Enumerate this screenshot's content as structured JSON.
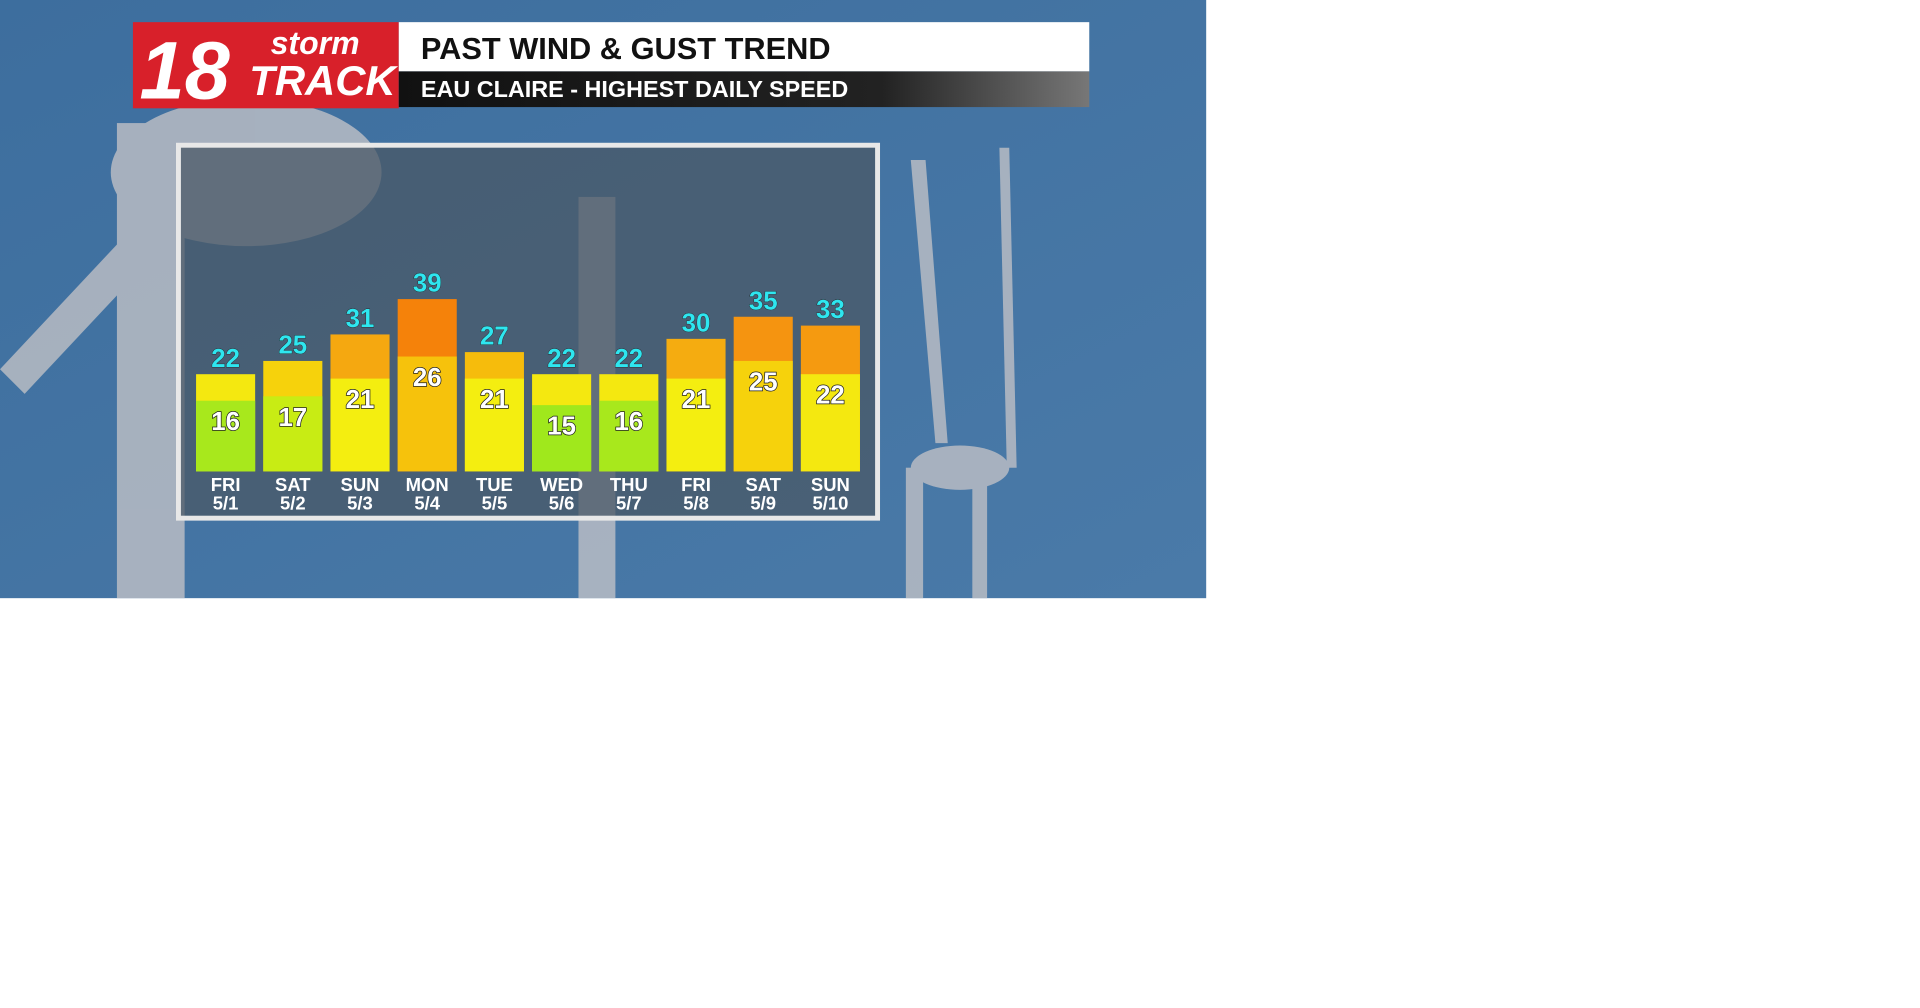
{
  "logo": {
    "number": "18",
    "top": "storm",
    "bottom": "TRACK"
  },
  "chart_data": {
    "type": "bar",
    "title": "PAST WIND & GUST TREND",
    "subtitle": "EAU CLAIRE - HIGHEST DAILY SPEED",
    "categories": [
      [
        "FRI",
        "5/1"
      ],
      [
        "SAT",
        "5/2"
      ],
      [
        "SUN",
        "5/3"
      ],
      [
        "MON",
        "5/4"
      ],
      [
        "TUE",
        "5/5"
      ],
      [
        "WED",
        "5/6"
      ],
      [
        "THU",
        "5/7"
      ],
      [
        "FRI",
        "5/8"
      ],
      [
        "SAT",
        "5/9"
      ],
      [
        "SUN",
        "5/10"
      ]
    ],
    "series": [
      {
        "values": [
          22,
          25,
          31,
          39,
          27,
          22,
          22,
          30,
          35,
          33
        ],
        "colors": [
          "#f4e810",
          "#f6d20c",
          "#f5a810",
          "#f5820a",
          "#f6bc0c",
          "#f4e810",
          "#f4e810",
          "#f5ac10",
          "#f59410",
          "#f59a10"
        ],
        "label_color": "#2ee6f0"
      },
      {
        "values": [
          16,
          17,
          21,
          26,
          21,
          15,
          16,
          21,
          25,
          22
        ],
        "colors": [
          "#a8e81c",
          "#c8ec14",
          "#f4ee10",
          "#f6c20c",
          "#f4ee10",
          "#a0e81c",
          "#a8e81c",
          "#f4ee10",
          "#f6d20c",
          "#f4e810"
        ],
        "label_color": "#ffffff"
      }
    ]
  }
}
